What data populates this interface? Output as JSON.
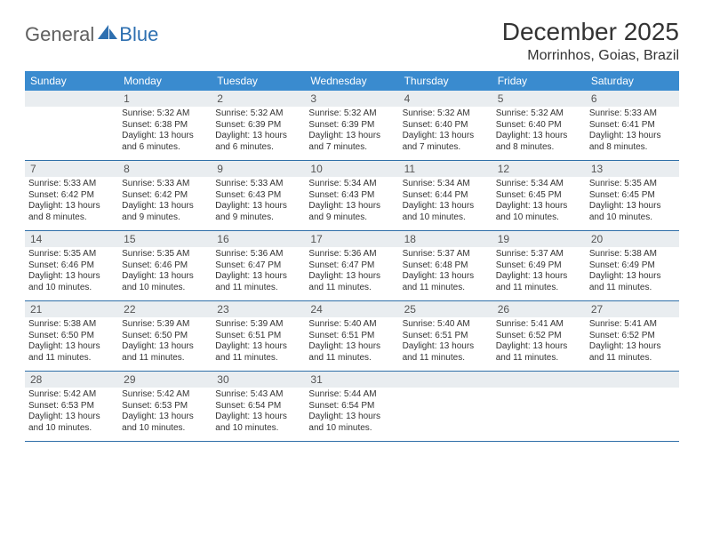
{
  "logo": {
    "general": "General",
    "blue": "Blue"
  },
  "title": "December 2025",
  "location": "Morrinhos, Goias, Brazil",
  "colors": {
    "header_bg": "#3a8bcf",
    "header_fg": "#ffffff",
    "daynum_bg": "#e9edf0",
    "week_border": "#2f6fa8",
    "logo_gray": "#606060",
    "logo_blue": "#2d6fb0"
  },
  "typography": {
    "title_fontsize": 28,
    "location_fontsize": 16,
    "dow_fontsize": 12,
    "daynum_fontsize": 12,
    "body_fontsize": 10
  },
  "days_of_week": [
    "Sunday",
    "Monday",
    "Tuesday",
    "Wednesday",
    "Thursday",
    "Friday",
    "Saturday"
  ],
  "weeks": [
    [
      {
        "num": "",
        "sunrise": "",
        "sunset": "",
        "daylight": ""
      },
      {
        "num": "1",
        "sunrise": "Sunrise: 5:32 AM",
        "sunset": "Sunset: 6:38 PM",
        "daylight": "Daylight: 13 hours and 6 minutes."
      },
      {
        "num": "2",
        "sunrise": "Sunrise: 5:32 AM",
        "sunset": "Sunset: 6:39 PM",
        "daylight": "Daylight: 13 hours and 6 minutes."
      },
      {
        "num": "3",
        "sunrise": "Sunrise: 5:32 AM",
        "sunset": "Sunset: 6:39 PM",
        "daylight": "Daylight: 13 hours and 7 minutes."
      },
      {
        "num": "4",
        "sunrise": "Sunrise: 5:32 AM",
        "sunset": "Sunset: 6:40 PM",
        "daylight": "Daylight: 13 hours and 7 minutes."
      },
      {
        "num": "5",
        "sunrise": "Sunrise: 5:32 AM",
        "sunset": "Sunset: 6:40 PM",
        "daylight": "Daylight: 13 hours and 8 minutes."
      },
      {
        "num": "6",
        "sunrise": "Sunrise: 5:33 AM",
        "sunset": "Sunset: 6:41 PM",
        "daylight": "Daylight: 13 hours and 8 minutes."
      }
    ],
    [
      {
        "num": "7",
        "sunrise": "Sunrise: 5:33 AM",
        "sunset": "Sunset: 6:42 PM",
        "daylight": "Daylight: 13 hours and 8 minutes."
      },
      {
        "num": "8",
        "sunrise": "Sunrise: 5:33 AM",
        "sunset": "Sunset: 6:42 PM",
        "daylight": "Daylight: 13 hours and 9 minutes."
      },
      {
        "num": "9",
        "sunrise": "Sunrise: 5:33 AM",
        "sunset": "Sunset: 6:43 PM",
        "daylight": "Daylight: 13 hours and 9 minutes."
      },
      {
        "num": "10",
        "sunrise": "Sunrise: 5:34 AM",
        "sunset": "Sunset: 6:43 PM",
        "daylight": "Daylight: 13 hours and 9 minutes."
      },
      {
        "num": "11",
        "sunrise": "Sunrise: 5:34 AM",
        "sunset": "Sunset: 6:44 PM",
        "daylight": "Daylight: 13 hours and 10 minutes."
      },
      {
        "num": "12",
        "sunrise": "Sunrise: 5:34 AM",
        "sunset": "Sunset: 6:45 PM",
        "daylight": "Daylight: 13 hours and 10 minutes."
      },
      {
        "num": "13",
        "sunrise": "Sunrise: 5:35 AM",
        "sunset": "Sunset: 6:45 PM",
        "daylight": "Daylight: 13 hours and 10 minutes."
      }
    ],
    [
      {
        "num": "14",
        "sunrise": "Sunrise: 5:35 AM",
        "sunset": "Sunset: 6:46 PM",
        "daylight": "Daylight: 13 hours and 10 minutes."
      },
      {
        "num": "15",
        "sunrise": "Sunrise: 5:35 AM",
        "sunset": "Sunset: 6:46 PM",
        "daylight": "Daylight: 13 hours and 10 minutes."
      },
      {
        "num": "16",
        "sunrise": "Sunrise: 5:36 AM",
        "sunset": "Sunset: 6:47 PM",
        "daylight": "Daylight: 13 hours and 11 minutes."
      },
      {
        "num": "17",
        "sunrise": "Sunrise: 5:36 AM",
        "sunset": "Sunset: 6:47 PM",
        "daylight": "Daylight: 13 hours and 11 minutes."
      },
      {
        "num": "18",
        "sunrise": "Sunrise: 5:37 AM",
        "sunset": "Sunset: 6:48 PM",
        "daylight": "Daylight: 13 hours and 11 minutes."
      },
      {
        "num": "19",
        "sunrise": "Sunrise: 5:37 AM",
        "sunset": "Sunset: 6:49 PM",
        "daylight": "Daylight: 13 hours and 11 minutes."
      },
      {
        "num": "20",
        "sunrise": "Sunrise: 5:38 AM",
        "sunset": "Sunset: 6:49 PM",
        "daylight": "Daylight: 13 hours and 11 minutes."
      }
    ],
    [
      {
        "num": "21",
        "sunrise": "Sunrise: 5:38 AM",
        "sunset": "Sunset: 6:50 PM",
        "daylight": "Daylight: 13 hours and 11 minutes."
      },
      {
        "num": "22",
        "sunrise": "Sunrise: 5:39 AM",
        "sunset": "Sunset: 6:50 PM",
        "daylight": "Daylight: 13 hours and 11 minutes."
      },
      {
        "num": "23",
        "sunrise": "Sunrise: 5:39 AM",
        "sunset": "Sunset: 6:51 PM",
        "daylight": "Daylight: 13 hours and 11 minutes."
      },
      {
        "num": "24",
        "sunrise": "Sunrise: 5:40 AM",
        "sunset": "Sunset: 6:51 PM",
        "daylight": "Daylight: 13 hours and 11 minutes."
      },
      {
        "num": "25",
        "sunrise": "Sunrise: 5:40 AM",
        "sunset": "Sunset: 6:51 PM",
        "daylight": "Daylight: 13 hours and 11 minutes."
      },
      {
        "num": "26",
        "sunrise": "Sunrise: 5:41 AM",
        "sunset": "Sunset: 6:52 PM",
        "daylight": "Daylight: 13 hours and 11 minutes."
      },
      {
        "num": "27",
        "sunrise": "Sunrise: 5:41 AM",
        "sunset": "Sunset: 6:52 PM",
        "daylight": "Daylight: 13 hours and 11 minutes."
      }
    ],
    [
      {
        "num": "28",
        "sunrise": "Sunrise: 5:42 AM",
        "sunset": "Sunset: 6:53 PM",
        "daylight": "Daylight: 13 hours and 10 minutes."
      },
      {
        "num": "29",
        "sunrise": "Sunrise: 5:42 AM",
        "sunset": "Sunset: 6:53 PM",
        "daylight": "Daylight: 13 hours and 10 minutes."
      },
      {
        "num": "30",
        "sunrise": "Sunrise: 5:43 AM",
        "sunset": "Sunset: 6:54 PM",
        "daylight": "Daylight: 13 hours and 10 minutes."
      },
      {
        "num": "31",
        "sunrise": "Sunrise: 5:44 AM",
        "sunset": "Sunset: 6:54 PM",
        "daylight": "Daylight: 13 hours and 10 minutes."
      },
      {
        "num": "",
        "sunrise": "",
        "sunset": "",
        "daylight": ""
      },
      {
        "num": "",
        "sunrise": "",
        "sunset": "",
        "daylight": ""
      },
      {
        "num": "",
        "sunrise": "",
        "sunset": "",
        "daylight": ""
      }
    ]
  ]
}
